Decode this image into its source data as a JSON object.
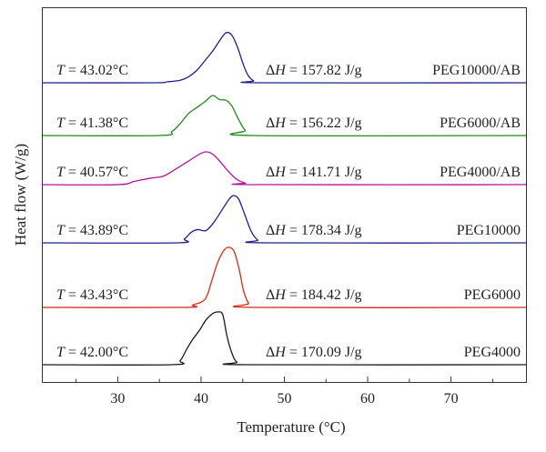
{
  "chart_data": {
    "type": "line",
    "title": "",
    "xlabel": "Temperature (°C)",
    "ylabel": "Heat flow (W/g)",
    "xlim": [
      21,
      79
    ],
    "xticks": [
      "30",
      "40",
      "50",
      "60",
      "70"
    ],
    "grid": false,
    "y_tick_labels": false,
    "series": [
      {
        "name": "PEG10000/AB",
        "color": "#1f1f8c",
        "t_label": "43.02°C",
        "dh_label": "157.82 J/g",
        "peak_x": 43.0,
        "x": [
          21,
          34,
          36,
          37.5,
          38.5,
          39.5,
          40.5,
          41.5,
          42.3,
          43.0,
          43.7,
          44.4,
          45.0,
          45.6,
          46.3,
          47.5,
          79
        ],
        "y": [
          0,
          0,
          0.02,
          0.05,
          0.12,
          0.25,
          0.45,
          0.66,
          0.86,
          1.0,
          0.95,
          0.7,
          0.4,
          0.16,
          0.04,
          0,
          0
        ]
      },
      {
        "name": "PEG6000/AB",
        "color": "#1e8a1e",
        "t_label": "41.38°C",
        "dh_label": "156.22 J/g",
        "peak_x": 41.4,
        "x": [
          21,
          35,
          36.5,
          37.5,
          38.5,
          39.5,
          40.5,
          41.4,
          42.2,
          43.0,
          43.7,
          44.5,
          45.3,
          46.2,
          79
        ],
        "y": [
          0,
          0,
          0.1,
          0.3,
          0.55,
          0.7,
          0.85,
          1.0,
          0.9,
          0.88,
          0.74,
          0.4,
          0.13,
          0,
          0
        ]
      },
      {
        "name": "PEG4000/AB",
        "color": "#b4139e",
        "t_label": "40.57°C",
        "dh_label": "141.71 J/g",
        "peak_x": 40.6,
        "x": [
          21,
          30,
          32,
          34,
          35.5,
          37,
          38.5,
          39.8,
          40.6,
          41.4,
          42.3,
          43.3,
          44.3,
          45.3,
          46.5,
          79
        ],
        "y": [
          0,
          0,
          0.1,
          0.2,
          0.26,
          0.48,
          0.72,
          0.93,
          1.0,
          0.93,
          0.7,
          0.4,
          0.16,
          0.05,
          0,
          0
        ]
      },
      {
        "name": "PEG10000",
        "color": "#1f1f8c",
        "t_label": "43.89°C",
        "dh_label": "178.34 J/g",
        "peak_x": 43.9,
        "x": [
          21,
          37,
          38,
          38.8,
          39.6,
          40.6,
          41.6,
          42.6,
          43.4,
          43.9,
          44.5,
          45.2,
          46.0,
          46.8,
          48,
          79
        ],
        "y": [
          0,
          0,
          0.08,
          0.22,
          0.28,
          0.26,
          0.45,
          0.72,
          0.93,
          1.0,
          0.93,
          0.62,
          0.25,
          0.06,
          0,
          0
        ]
      },
      {
        "name": "PEG6000",
        "color": "#d42a18",
        "t_label": "43.43°C",
        "dh_label": "184.42 J/g",
        "peak_x": 43.4,
        "x": [
          21,
          38,
          39,
          40.5,
          41.3,
          42.0,
          42.8,
          43.4,
          44.0,
          44.6,
          45.1,
          45.7,
          46.5,
          79
        ],
        "y": [
          0,
          0,
          0.04,
          0.14,
          0.45,
          0.75,
          0.96,
          1.0,
          0.92,
          0.62,
          0.28,
          0.07,
          0,
          0
        ]
      },
      {
        "name": "PEG4000",
        "color": "#1a1a1a",
        "t_label": "42.00°C",
        "dh_label": "170.09 J/g",
        "peak_x": 42.0,
        "x": [
          21,
          36.5,
          37.5,
          38.3,
          39.0,
          39.8,
          40.6,
          41.4,
          42.0,
          42.6,
          43.1,
          43.7,
          44.3,
          45.5,
          79
        ],
        "y": [
          0,
          0,
          0.08,
          0.3,
          0.48,
          0.65,
          0.85,
          0.97,
          1.0,
          0.95,
          0.55,
          0.22,
          0.05,
          0,
          0
        ]
      }
    ]
  }
}
